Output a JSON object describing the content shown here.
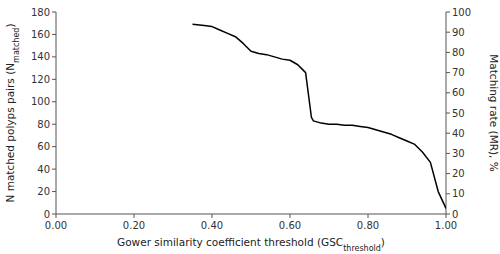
{
  "chart_data": {
    "type": "line",
    "x": [
      0.35,
      0.38,
      0.4,
      0.42,
      0.44,
      0.46,
      0.48,
      0.5,
      0.52,
      0.54,
      0.56,
      0.58,
      0.6,
      0.62,
      0.64,
      0.655,
      0.66,
      0.68,
      0.7,
      0.72,
      0.74,
      0.76,
      0.78,
      0.8,
      0.82,
      0.84,
      0.86,
      0.88,
      0.9,
      0.92,
      0.94,
      0.96,
      0.98,
      1.0
    ],
    "values": [
      169,
      168,
      167,
      164,
      161,
      158,
      152,
      145,
      143,
      142,
      140,
      138,
      137,
      133,
      126,
      86,
      83,
      81,
      80,
      80,
      79,
      79,
      78,
      77,
      75,
      73,
      71,
      68,
      65,
      62,
      55,
      46,
      20,
      5
    ],
    "color": "#000000",
    "x_label": [
      "Gower similarity coefficient threshold (GSC",
      "threshold",
      ")"
    ],
    "y_label": [
      "N matched polyps pairs (N",
      "matched",
      ")"
    ],
    "y2_label": "Matching rate (MR), %",
    "xlim": [
      0.0,
      1.0
    ],
    "xticks": [
      {
        "value": 0.0,
        "label": "0.00"
      },
      {
        "value": 0.2,
        "label": "0.20"
      },
      {
        "value": 0.4,
        "label": "0.40"
      },
      {
        "value": 0.6,
        "label": "0.60"
      },
      {
        "value": 0.8,
        "label": "0.80"
      },
      {
        "value": 1.0,
        "label": "1.00"
      }
    ],
    "ylim": [
      0,
      180
    ],
    "yticks": [
      0,
      20,
      40,
      60,
      80,
      100,
      120,
      140,
      160,
      180
    ],
    "y2lim": [
      0,
      100
    ],
    "y2ticks": [
      0,
      10,
      20,
      30,
      40,
      50,
      60,
      70,
      80,
      90,
      100
    ]
  }
}
